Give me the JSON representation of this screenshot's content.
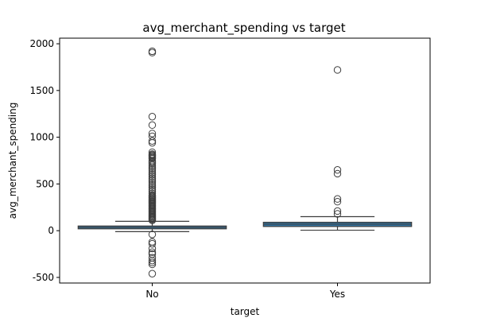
{
  "chart_data": {
    "type": "box",
    "title": "avg_merchant_spending vs target",
    "xlabel": "target",
    "ylabel": "avg_merchant_spending",
    "categories": [
      "No",
      "Yes"
    ],
    "ylim": [
      -560,
      2060
    ],
    "yticks": [
      -500,
      0,
      500,
      1000,
      1500,
      2000
    ],
    "grid": false,
    "colors": {
      "box_fill": "#3274a1",
      "line": "#3d3d3d",
      "axis": "#000000"
    },
    "boxes": [
      {
        "category": "No",
        "whisker_low": -10,
        "q1": 20,
        "median": 35,
        "q3": 50,
        "whisker_high": 100,
        "outliers": [
          1920,
          1905,
          1220,
          1130,
          1040,
          1010,
          960,
          940,
          840,
          820,
          810,
          800,
          790,
          780,
          770,
          750,
          735,
          720,
          700,
          680,
          660,
          640,
          620,
          600,
          580,
          560,
          540,
          520,
          500,
          480,
          460,
          440,
          420,
          400,
          380,
          370,
          360,
          350,
          340,
          330,
          320,
          310,
          300,
          290,
          280,
          270,
          260,
          250,
          240,
          230,
          220,
          210,
          200,
          190,
          180,
          170,
          160,
          150,
          140,
          130,
          120,
          110,
          -40,
          -120,
          -140,
          -190,
          -230,
          -250,
          -290,
          -320,
          -340,
          -360,
          -460
        ]
      },
      {
        "category": "Yes",
        "whisker_low": 5,
        "q1": 45,
        "median": 70,
        "q3": 90,
        "whisker_high": 150,
        "outliers": [
          1720,
          650,
          610,
          340,
          310,
          210,
          180
        ]
      }
    ]
  }
}
